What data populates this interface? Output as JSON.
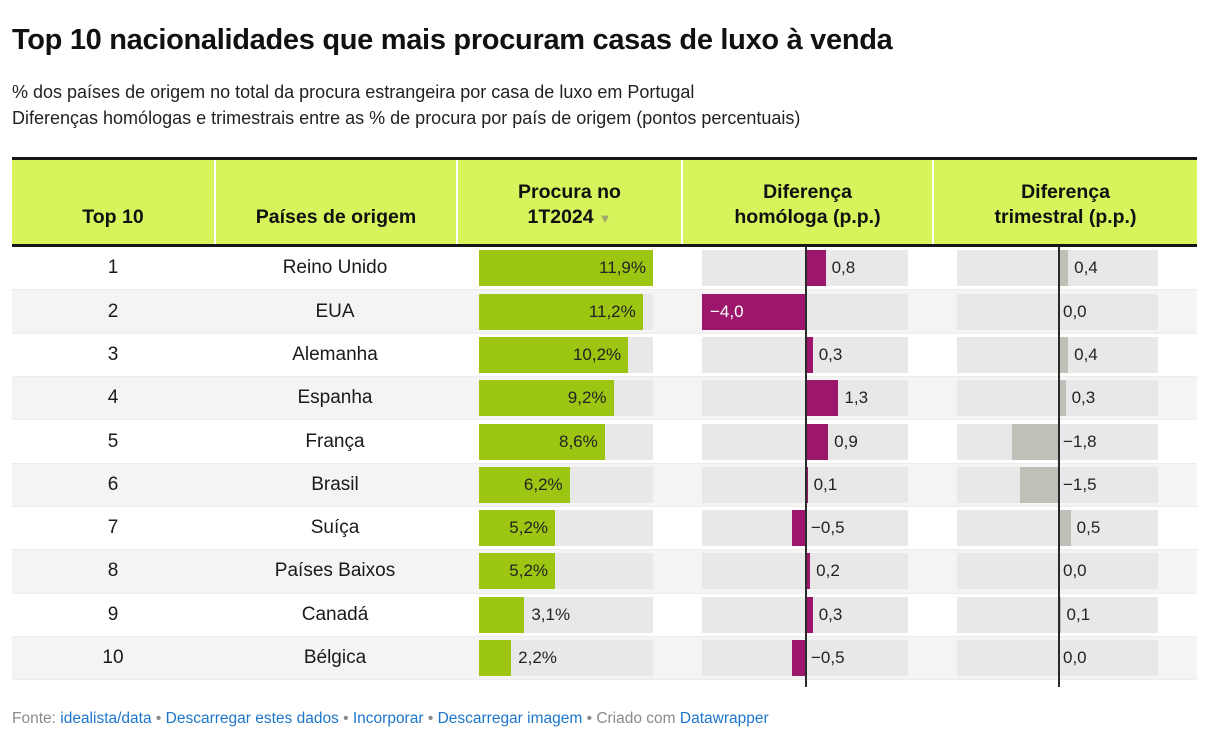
{
  "header": {
    "title": "Top 10 nacionalidades que mais procuram casas de luxo à venda",
    "subtitle_line1": "% dos países de origem no total da procura estrangeira por casa de luxo em Portugal",
    "subtitle_line2": "Diferenças homólogas e trimestrais entre as % de procura por país de origem (pontos percentuais)"
  },
  "table": {
    "columns": [
      {
        "line2": "Top 10"
      },
      {
        "line2": "Países de origem"
      },
      {
        "line1": "Procura no",
        "line2": "1T2024",
        "sort": "▼"
      },
      {
        "line1": "Diferença",
        "line2": "homóloga (p.p.)"
      },
      {
        "line1": "Diferença",
        "line2": "trimestral (p.p.)"
      }
    ]
  },
  "chart_data": {
    "type": "table",
    "title": "Top 10 nacionalidades que mais procuram casas de luxo à venda",
    "subtitle": [
      "% dos países de origem no total da procura estrangeira por casa de luxo em Portugal",
      "Diferenças homólogas e trimestrais entre as % de procura por país de origem (pontos percentuais)"
    ],
    "columns": [
      "Top 10",
      "Países de origem",
      "Procura no 1T2024",
      "Diferença homóloga (p.p.)",
      "Diferença trimestral (p.p.)"
    ],
    "sort": {
      "column": "Procura no 1T2024",
      "direction": "desc"
    },
    "procura_scale_max": 11.9,
    "diff_scale_max": 4.0,
    "rows": [
      {
        "rank": "1",
        "country": "Reino Unido",
        "procura": 11.9,
        "procura_label": "11,9%",
        "homologa": 0.8,
        "homologa_label": "0,8",
        "trimestral": 0.4,
        "trimestral_label": "0,4"
      },
      {
        "rank": "2",
        "country": "EUA",
        "procura": 11.2,
        "procura_label": "11,2%",
        "homologa": -4.0,
        "homologa_label": "−4,0",
        "trimestral": 0.0,
        "trimestral_label": "0,0"
      },
      {
        "rank": "3",
        "country": "Alemanha",
        "procura": 10.2,
        "procura_label": "10,2%",
        "homologa": 0.3,
        "homologa_label": "0,3",
        "trimestral": 0.4,
        "trimestral_label": "0,4"
      },
      {
        "rank": "4",
        "country": "Espanha",
        "procura": 9.2,
        "procura_label": "9,2%",
        "homologa": 1.3,
        "homologa_label": "1,3",
        "trimestral": 0.3,
        "trimestral_label": "0,3"
      },
      {
        "rank": "5",
        "country": "França",
        "procura": 8.6,
        "procura_label": "8,6%",
        "homologa": 0.9,
        "homologa_label": "0,9",
        "trimestral": -1.8,
        "trimestral_label": "−1,8"
      },
      {
        "rank": "6",
        "country": "Brasil",
        "procura": 6.2,
        "procura_label": "6,2%",
        "homologa": 0.1,
        "homologa_label": "0,1",
        "trimestral": -1.5,
        "trimestral_label": "−1,5"
      },
      {
        "rank": "7",
        "country": "Suíça",
        "procura": 5.2,
        "procura_label": "5,2%",
        "homologa": -0.5,
        "homologa_label": "−0,5",
        "trimestral": 0.5,
        "trimestral_label": "0,5"
      },
      {
        "rank": "8",
        "country": "Países Baixos",
        "procura": 5.2,
        "procura_label": "5,2%",
        "homologa": 0.2,
        "homologa_label": "0,2",
        "trimestral": 0.0,
        "trimestral_label": "0,0"
      },
      {
        "rank": "9",
        "country": "Canadá",
        "procura": 3.1,
        "procura_label": "3,1%",
        "homologa": 0.3,
        "homologa_label": "0,3",
        "trimestral": 0.1,
        "trimestral_label": "0,1"
      },
      {
        "rank": "10",
        "country": "Bélgica",
        "procura": 2.2,
        "procura_label": "2,2%",
        "homologa": -0.5,
        "homologa_label": "−0,5",
        "trimestral": 0.0,
        "trimestral_label": "0,0"
      }
    ]
  },
  "footer": {
    "parts": [
      {
        "text": "Fonte: ",
        "type": "plain"
      },
      {
        "text": "idealista/data",
        "type": "link",
        "name": "footer-link-idealista-data"
      },
      {
        "text": " • ",
        "type": "plain"
      },
      {
        "text": "Descarregar estes dados",
        "type": "link",
        "name": "footer-link-download-data"
      },
      {
        "text": " • ",
        "type": "plain"
      },
      {
        "text": "Incorporar",
        "type": "link",
        "name": "footer-link-embed"
      },
      {
        "text": " • ",
        "type": "plain"
      },
      {
        "text": "Descarregar imagem",
        "type": "link",
        "name": "footer-link-download-image"
      },
      {
        "text": " • ",
        "type": "plain"
      },
      {
        "text": "Criado com ",
        "type": "plain"
      },
      {
        "text": "Datawrapper",
        "type": "link",
        "name": "footer-link-datawrapper"
      }
    ]
  },
  "colors": {
    "header_bg": "#d7f45c",
    "bar_green": "#9dc613",
    "bar_magenta": "#9c176b",
    "bar_gray": "#c0c0b8",
    "track": "#e8e8e8",
    "link": "#1d76cc",
    "zero_line": "#2a2a2a"
  }
}
